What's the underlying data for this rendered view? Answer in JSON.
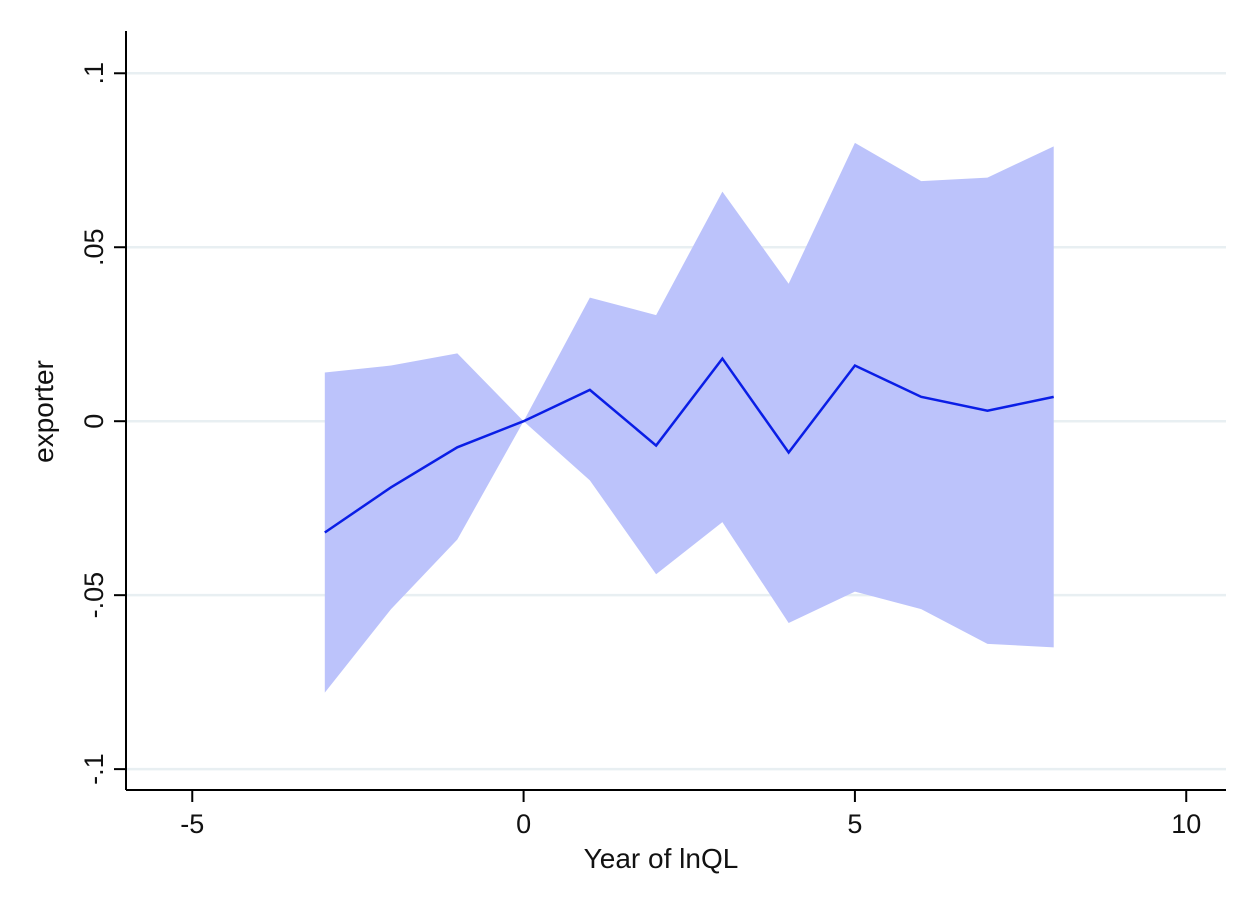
{
  "chart_data": {
    "type": "area",
    "xlabel": "Year of lnQL",
    "ylabel": "exporter",
    "xlim": [
      -6,
      10.6
    ],
    "ylim": [
      -0.106,
      0.111
    ],
    "x_ticks": [
      -5,
      0,
      5,
      10
    ],
    "x_tick_labels": [
      "-5",
      "0",
      "5",
      "10"
    ],
    "y_ticks": [
      -0.1,
      -0.05,
      0,
      0.05,
      0.1
    ],
    "y_tick_labels": [
      "-.1",
      "-.05",
      "0",
      ".05",
      ".1"
    ],
    "grid": "horizontal",
    "legend": "none",
    "colors": {
      "line": "#0a1ee6",
      "band": "#bcc3fb",
      "grid": "#e8eff2",
      "axis": "#000000"
    },
    "x": [
      -3,
      -2,
      -1,
      0,
      1,
      2,
      3,
      4,
      5,
      6,
      7,
      8
    ],
    "series": [
      {
        "values": [
          -0.032,
          -0.019,
          -0.0075,
          0,
          0.009,
          -0.007,
          0.018,
          -0.009,
          0.016,
          0.007,
          0.003,
          0.007
        ]
      }
    ],
    "band": {
      "lower": [
        -0.078,
        -0.054,
        -0.034,
        0,
        -0.017,
        -0.044,
        -0.029,
        -0.058,
        -0.049,
        -0.054,
        -0.064,
        -0.065
      ],
      "upper": [
        0.014,
        0.016,
        0.0195,
        0,
        0.0355,
        0.0305,
        0.066,
        0.0395,
        0.08,
        0.069,
        0.07,
        0.079
      ]
    }
  }
}
